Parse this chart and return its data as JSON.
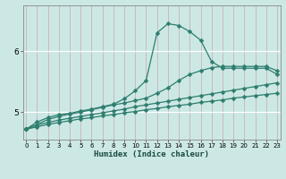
{
  "xlabel": "Humidex (Indice chaleur)",
  "xlim": [
    -0.3,
    23.3
  ],
  "ylim": [
    4.55,
    6.75
  ],
  "yticks": [
    5,
    6
  ],
  "xticks": [
    0,
    1,
    2,
    3,
    4,
    5,
    6,
    7,
    8,
    9,
    10,
    11,
    12,
    13,
    14,
    15,
    16,
    17,
    18,
    19,
    20,
    21,
    22,
    23
  ],
  "bg_color": "#cce8e5",
  "line_color": "#2e7d6e",
  "grid_color": "#b8d8d4",
  "vgrid_color": "#c8a8a8",
  "line1_x": [
    0,
    1,
    2,
    3,
    4,
    5,
    6,
    7,
    8,
    9,
    10,
    11,
    12,
    13,
    14,
    15,
    16,
    17,
    18,
    19,
    20,
    21,
    22,
    23
  ],
  "line1_y": [
    4.72,
    4.84,
    4.91,
    4.96,
    4.98,
    5.02,
    5.05,
    5.09,
    5.13,
    5.22,
    5.35,
    5.52,
    6.3,
    6.45,
    6.42,
    6.32,
    6.18,
    5.83,
    5.72,
    5.72,
    5.72,
    5.72,
    5.72,
    5.62
  ],
  "line2_x": [
    0,
    2,
    3,
    4,
    5,
    6,
    7,
    8,
    9,
    10,
    11,
    12,
    13,
    14,
    15,
    16,
    17,
    18,
    19,
    20,
    21,
    22,
    23
  ],
  "line2_y": [
    4.72,
    4.88,
    4.93,
    4.97,
    5.0,
    5.04,
    5.08,
    5.12,
    5.15,
    5.19,
    5.23,
    5.31,
    5.4,
    5.52,
    5.62,
    5.68,
    5.73,
    5.75,
    5.75,
    5.75,
    5.75,
    5.75,
    5.68
  ],
  "line3_x": [
    0,
    1,
    2,
    3,
    4,
    5,
    6,
    7,
    8,
    9,
    10,
    11,
    12,
    13,
    14,
    15,
    16,
    17,
    18,
    19,
    20,
    21,
    22,
    23
  ],
  "line3_y": [
    4.72,
    4.79,
    4.83,
    4.87,
    4.9,
    4.93,
    4.96,
    4.99,
    5.02,
    5.05,
    5.09,
    5.12,
    5.15,
    5.18,
    5.21,
    5.24,
    5.27,
    5.3,
    5.33,
    5.36,
    5.39,
    5.42,
    5.45,
    5.48
  ],
  "line4_x": [
    0,
    1,
    2,
    3,
    4,
    5,
    6,
    7,
    8,
    9,
    10,
    11,
    12,
    13,
    14,
    15,
    16,
    17,
    18,
    19,
    20,
    21,
    22,
    23
  ],
  "line4_y": [
    4.72,
    4.76,
    4.8,
    4.83,
    4.86,
    4.89,
    4.91,
    4.94,
    4.96,
    4.99,
    5.01,
    5.04,
    5.06,
    5.09,
    5.11,
    5.13,
    5.16,
    5.18,
    5.2,
    5.23,
    5.25,
    5.27,
    5.29,
    5.31
  ]
}
